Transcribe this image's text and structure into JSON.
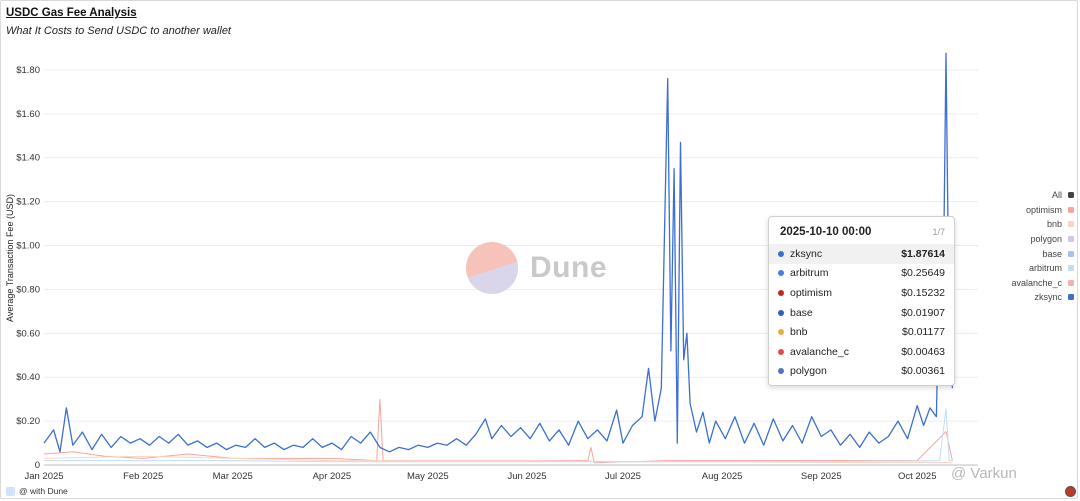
{
  "header": {
    "title": "USDC Gas Fee Analysis",
    "subtitle": "What It Costs to Send USDC to another wallet"
  },
  "watermark": {
    "text": "Dune"
  },
  "footer": {
    "text": "@ with Dune"
  },
  "corner_mark": {
    "text": "@ Varkun"
  },
  "tooltip": {
    "date": "2025-10-10 00:00",
    "page": "1/7",
    "rows": [
      {
        "name": "zksync",
        "value": "$1.87614",
        "color": "#3c6fd1"
      },
      {
        "name": "arbitrum",
        "value": "$0.25649",
        "color": "#4a7fd8"
      },
      {
        "name": "optimism",
        "value": "$0.15232",
        "color": "#c82323"
      },
      {
        "name": "base",
        "value": "$0.01907",
        "color": "#2f5fc4"
      },
      {
        "name": "bnb",
        "value": "$0.01177",
        "color": "#f1a944"
      },
      {
        "name": "avalanche_c",
        "value": "$0.00463",
        "color": "#e04d4d"
      },
      {
        "name": "polygon",
        "value": "$0.00361",
        "color": "#5470c6"
      }
    ]
  },
  "legend": [
    {
      "name": "All",
      "color": "#444444"
    },
    {
      "name": "optimism",
      "color": "#f3a6a0"
    },
    {
      "name": "bnb",
      "color": "#f9d4c2"
    },
    {
      "name": "polygon",
      "color": "#cfc9e6"
    },
    {
      "name": "base",
      "color": "#a9c1ea"
    },
    {
      "name": "arbitrum",
      "color": "#c3dcf7"
    },
    {
      "name": "avalanche_c",
      "color": "#f2b1ae"
    },
    {
      "name": "zksync",
      "color": "#3c6fd1"
    }
  ],
  "chart_data": {
    "type": "line",
    "title": "USDC Gas Fee Analysis",
    "subtitle": "What It Costs to Send USDC to another wallet",
    "ylabel": "Average Transaction Fee (USD)",
    "xlabel": "",
    "x_range": [
      "2025-01-01",
      "2025-10-20"
    ],
    "ylim": [
      0,
      1.9
    ],
    "y_ticks": [
      0,
      0.2,
      0.4,
      0.6,
      0.8,
      1.0,
      1.2,
      1.4,
      1.6,
      1.8
    ],
    "y_tick_labels": [
      "0",
      "$0.20",
      "$0.40",
      "$0.60",
      "$0.80",
      "$1.00",
      "$1.20",
      "$1.40",
      "$1.60",
      "$1.80"
    ],
    "x_ticks": [
      "2025-01-01",
      "2025-02-01",
      "2025-03-01",
      "2025-04-01",
      "2025-05-01",
      "2025-06-01",
      "2025-07-01",
      "2025-08-01",
      "2025-09-01",
      "2025-10-01"
    ],
    "x_tick_labels": [
      "Jan 2025",
      "Feb 2025",
      "Mar 2025",
      "Apr 2025",
      "May 2025",
      "Jun 2025",
      "Jul 2025",
      "Aug 2025",
      "Sep 2025",
      "Oct 2025"
    ],
    "grid": true,
    "legend_position": "right",
    "series": [
      {
        "name": "zksync",
        "color": "#3c6fd1",
        "width": 1.3,
        "points": [
          [
            "2025-01-01",
            0.1
          ],
          [
            "2025-01-04",
            0.16
          ],
          [
            "2025-01-06",
            0.06
          ],
          [
            "2025-01-08",
            0.26
          ],
          [
            "2025-01-10",
            0.09
          ],
          [
            "2025-01-13",
            0.15
          ],
          [
            "2025-01-16",
            0.07
          ],
          [
            "2025-01-19",
            0.14
          ],
          [
            "2025-01-22",
            0.08
          ],
          [
            "2025-01-25",
            0.13
          ],
          [
            "2025-01-28",
            0.1
          ],
          [
            "2025-01-31",
            0.12
          ],
          [
            "2025-02-03",
            0.09
          ],
          [
            "2025-02-06",
            0.13
          ],
          [
            "2025-02-09",
            0.1
          ],
          [
            "2025-02-12",
            0.14
          ],
          [
            "2025-02-15",
            0.09
          ],
          [
            "2025-02-18",
            0.11
          ],
          [
            "2025-02-21",
            0.08
          ],
          [
            "2025-02-24",
            0.1
          ],
          [
            "2025-02-27",
            0.07
          ],
          [
            "2025-03-02",
            0.09
          ],
          [
            "2025-03-05",
            0.08
          ],
          [
            "2025-03-08",
            0.12
          ],
          [
            "2025-03-11",
            0.08
          ],
          [
            "2025-03-14",
            0.1
          ],
          [
            "2025-03-17",
            0.07
          ],
          [
            "2025-03-20",
            0.09
          ],
          [
            "2025-03-23",
            0.08
          ],
          [
            "2025-03-26",
            0.12
          ],
          [
            "2025-03-29",
            0.08
          ],
          [
            "2025-04-01",
            0.1
          ],
          [
            "2025-04-04",
            0.07
          ],
          [
            "2025-04-07",
            0.13
          ],
          [
            "2025-04-10",
            0.1
          ],
          [
            "2025-04-13",
            0.15
          ],
          [
            "2025-04-16",
            0.08
          ],
          [
            "2025-04-19",
            0.06
          ],
          [
            "2025-04-22",
            0.08
          ],
          [
            "2025-04-25",
            0.07
          ],
          [
            "2025-04-28",
            0.09
          ],
          [
            "2025-05-01",
            0.08
          ],
          [
            "2025-05-04",
            0.1
          ],
          [
            "2025-05-07",
            0.09
          ],
          [
            "2025-05-10",
            0.12
          ],
          [
            "2025-05-13",
            0.09
          ],
          [
            "2025-05-16",
            0.14
          ],
          [
            "2025-05-19",
            0.21
          ],
          [
            "2025-05-21",
            0.12
          ],
          [
            "2025-05-24",
            0.18
          ],
          [
            "2025-05-27",
            0.13
          ],
          [
            "2025-05-30",
            0.17
          ],
          [
            "2025-06-02",
            0.12
          ],
          [
            "2025-06-05",
            0.19
          ],
          [
            "2025-06-08",
            0.11
          ],
          [
            "2025-06-11",
            0.16
          ],
          [
            "2025-06-14",
            0.09
          ],
          [
            "2025-06-17",
            0.2
          ],
          [
            "2025-06-20",
            0.12
          ],
          [
            "2025-06-23",
            0.16
          ],
          [
            "2025-06-26",
            0.11
          ],
          [
            "2025-06-29",
            0.25
          ],
          [
            "2025-07-01",
            0.1
          ],
          [
            "2025-07-04",
            0.18
          ],
          [
            "2025-07-07",
            0.22
          ],
          [
            "2025-07-09",
            0.44
          ],
          [
            "2025-07-11",
            0.2
          ],
          [
            "2025-07-13",
            0.35
          ],
          [
            "2025-07-15",
            1.76
          ],
          [
            "2025-07-16",
            0.52
          ],
          [
            "2025-07-17",
            1.35
          ],
          [
            "2025-07-18",
            0.1
          ],
          [
            "2025-07-19",
            1.47
          ],
          [
            "2025-07-20",
            0.48
          ],
          [
            "2025-07-21",
            0.6
          ],
          [
            "2025-07-22",
            0.28
          ],
          [
            "2025-07-24",
            0.15
          ],
          [
            "2025-07-26",
            0.24
          ],
          [
            "2025-07-28",
            0.1
          ],
          [
            "2025-07-30",
            0.2
          ],
          [
            "2025-08-02",
            0.12
          ],
          [
            "2025-08-05",
            0.22
          ],
          [
            "2025-08-08",
            0.1
          ],
          [
            "2025-08-11",
            0.19
          ],
          [
            "2025-08-14",
            0.09
          ],
          [
            "2025-08-17",
            0.21
          ],
          [
            "2025-08-20",
            0.11
          ],
          [
            "2025-08-23",
            0.18
          ],
          [
            "2025-08-26",
            0.1
          ],
          [
            "2025-08-29",
            0.22
          ],
          [
            "2025-09-01",
            0.13
          ],
          [
            "2025-09-04",
            0.16
          ],
          [
            "2025-09-07",
            0.09
          ],
          [
            "2025-09-10",
            0.14
          ],
          [
            "2025-09-13",
            0.08
          ],
          [
            "2025-09-16",
            0.15
          ],
          [
            "2025-09-19",
            0.1
          ],
          [
            "2025-09-22",
            0.13
          ],
          [
            "2025-09-25",
            0.2
          ],
          [
            "2025-09-28",
            0.12
          ],
          [
            "2025-10-01",
            0.27
          ],
          [
            "2025-10-03",
            0.18
          ],
          [
            "2025-10-05",
            0.26
          ],
          [
            "2025-10-07",
            0.22
          ],
          [
            "2025-10-08",
            0.94
          ],
          [
            "2025-10-09",
            0.6
          ],
          [
            "2025-10-10",
            1.876
          ],
          [
            "2025-10-11",
            0.6
          ],
          [
            "2025-10-12",
            0.35
          ]
        ]
      },
      {
        "name": "optimism",
        "color": "#f3a6a0",
        "width": 1,
        "points": [
          [
            "2025-01-01",
            0.05
          ],
          [
            "2025-01-10",
            0.06
          ],
          [
            "2025-01-20",
            0.04
          ],
          [
            "2025-02-01",
            0.03
          ],
          [
            "2025-02-15",
            0.05
          ],
          [
            "2025-03-01",
            0.03
          ],
          [
            "2025-03-15",
            0.03
          ],
          [
            "2025-04-01",
            0.03
          ],
          [
            "2025-04-15",
            0.02
          ],
          [
            "2025-04-16",
            0.3
          ],
          [
            "2025-04-17",
            0.02
          ],
          [
            "2025-05-01",
            0.02
          ],
          [
            "2025-06-01",
            0.02
          ],
          [
            "2025-06-20",
            0.02
          ],
          [
            "2025-06-21",
            0.08
          ],
          [
            "2025-06-22",
            0.01
          ],
          [
            "2025-07-15",
            0.02
          ],
          [
            "2025-08-01",
            0.02
          ],
          [
            "2025-09-01",
            0.02
          ],
          [
            "2025-10-01",
            0.02
          ],
          [
            "2025-10-10",
            0.15232
          ],
          [
            "2025-10-12",
            0.02
          ]
        ]
      },
      {
        "name": "bnb",
        "color": "#f9d4c2",
        "width": 1,
        "points": [
          [
            "2025-01-01",
            0.03
          ],
          [
            "2025-02-01",
            0.04
          ],
          [
            "2025-03-01",
            0.03
          ],
          [
            "2025-04-01",
            0.02
          ],
          [
            "2025-05-01",
            0.02
          ],
          [
            "2025-06-01",
            0.02
          ],
          [
            "2025-07-01",
            0.015
          ],
          [
            "2025-08-01",
            0.015
          ],
          [
            "2025-09-01",
            0.012
          ],
          [
            "2025-10-10",
            0.01177
          ],
          [
            "2025-10-12",
            0.01
          ]
        ]
      },
      {
        "name": "arbitrum",
        "color": "#c3dcf7",
        "width": 1,
        "points": [
          [
            "2025-01-01",
            0.02
          ],
          [
            "2025-02-01",
            0.02
          ],
          [
            "2025-03-01",
            0.02
          ],
          [
            "2025-04-01",
            0.015
          ],
          [
            "2025-05-01",
            0.015
          ],
          [
            "2025-06-01",
            0.015
          ],
          [
            "2025-07-01",
            0.015
          ],
          [
            "2025-08-01",
            0.015
          ],
          [
            "2025-09-01",
            0.015
          ],
          [
            "2025-10-08",
            0.02
          ],
          [
            "2025-10-10",
            0.25649
          ],
          [
            "2025-10-11",
            0.02
          ],
          [
            "2025-10-12",
            0.02
          ]
        ]
      }
    ]
  }
}
